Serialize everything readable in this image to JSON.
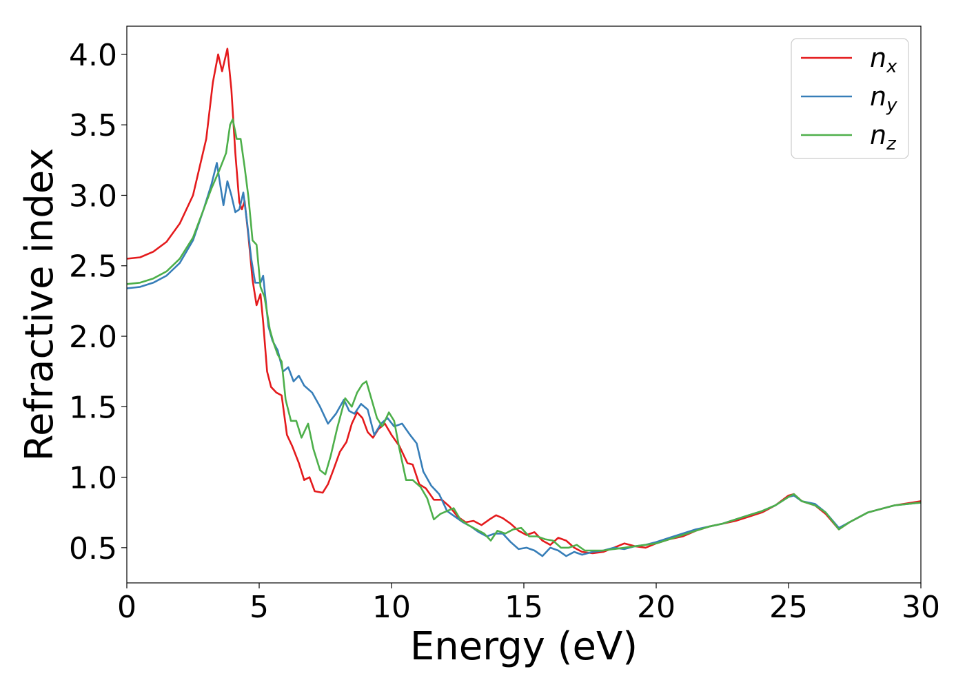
{
  "chart_data": {
    "type": "line",
    "title": "",
    "xlabel": "Energy (eV)",
    "ylabel": "Refractive index",
    "xlim": [
      0,
      30
    ],
    "ylim": [
      0.25,
      4.2
    ],
    "xticks": [
      0,
      5,
      10,
      15,
      20,
      25,
      30
    ],
    "yticks": [
      0.5,
      1.0,
      1.5,
      2.0,
      2.5,
      3.0,
      3.5,
      4.0
    ],
    "xtick_labels": [
      "0",
      "5",
      "10",
      "15",
      "20",
      "25",
      "30"
    ],
    "ytick_labels": [
      "0.5",
      "1.0",
      "1.5",
      "2.0",
      "2.5",
      "3.0",
      "3.5",
      "4.0"
    ],
    "grid": false,
    "legend_position": "top-right",
    "series": [
      {
        "name": "n",
        "subscript": "x",
        "color": "#e41a1c",
        "points": [
          [
            0,
            2.55
          ],
          [
            0.5,
            2.56
          ],
          [
            1,
            2.6
          ],
          [
            1.5,
            2.67
          ],
          [
            2,
            2.8
          ],
          [
            2.5,
            3.0
          ],
          [
            3,
            3.4
          ],
          [
            3.25,
            3.8
          ],
          [
            3.45,
            4.0
          ],
          [
            3.6,
            3.88
          ],
          [
            3.8,
            4.04
          ],
          [
            3.95,
            3.75
          ],
          [
            4.1,
            3.3
          ],
          [
            4.25,
            2.95
          ],
          [
            4.35,
            2.9
          ],
          [
            4.45,
            2.96
          ],
          [
            4.6,
            2.7
          ],
          [
            4.75,
            2.4
          ],
          [
            4.9,
            2.22
          ],
          [
            5.05,
            2.3
          ],
          [
            5.15,
            2.1
          ],
          [
            5.3,
            1.75
          ],
          [
            5.45,
            1.64
          ],
          [
            5.65,
            1.6
          ],
          [
            5.85,
            1.58
          ],
          [
            6.05,
            1.3
          ],
          [
            6.25,
            1.22
          ],
          [
            6.5,
            1.1
          ],
          [
            6.7,
            0.98
          ],
          [
            6.9,
            1.0
          ],
          [
            7.1,
            0.9
          ],
          [
            7.4,
            0.89
          ],
          [
            7.6,
            0.95
          ],
          [
            7.8,
            1.05
          ],
          [
            8.05,
            1.18
          ],
          [
            8.3,
            1.25
          ],
          [
            8.5,
            1.38
          ],
          [
            8.7,
            1.46
          ],
          [
            8.9,
            1.42
          ],
          [
            9.1,
            1.32
          ],
          [
            9.3,
            1.28
          ],
          [
            9.5,
            1.34
          ],
          [
            9.75,
            1.38
          ],
          [
            10,
            1.3
          ],
          [
            10.3,
            1.22
          ],
          [
            10.6,
            1.1
          ],
          [
            10.8,
            1.09
          ],
          [
            11.05,
            0.95
          ],
          [
            11.3,
            0.92
          ],
          [
            11.6,
            0.84
          ],
          [
            11.9,
            0.84
          ],
          [
            12.2,
            0.79
          ],
          [
            12.5,
            0.72
          ],
          [
            12.8,
            0.68
          ],
          [
            13.1,
            0.69
          ],
          [
            13.4,
            0.66
          ],
          [
            13.7,
            0.7
          ],
          [
            13.95,
            0.73
          ],
          [
            14.2,
            0.71
          ],
          [
            14.5,
            0.67
          ],
          [
            14.8,
            0.62
          ],
          [
            15.1,
            0.59
          ],
          [
            15.4,
            0.61
          ],
          [
            15.7,
            0.55
          ],
          [
            16,
            0.52
          ],
          [
            16.3,
            0.57
          ],
          [
            16.6,
            0.55
          ],
          [
            16.9,
            0.5
          ],
          [
            17.2,
            0.47
          ],
          [
            17.6,
            0.46
          ],
          [
            18,
            0.47
          ],
          [
            18.4,
            0.5
          ],
          [
            18.8,
            0.53
          ],
          [
            19.2,
            0.51
          ],
          [
            19.6,
            0.5
          ],
          [
            20,
            0.53
          ],
          [
            20.5,
            0.56
          ],
          [
            21,
            0.58
          ],
          [
            21.5,
            0.62
          ],
          [
            22,
            0.65
          ],
          [
            22.5,
            0.67
          ],
          [
            23,
            0.69
          ],
          [
            23.5,
            0.72
          ],
          [
            24,
            0.75
          ],
          [
            24.5,
            0.8
          ],
          [
            25,
            0.87
          ],
          [
            25.2,
            0.88
          ],
          [
            25.5,
            0.83
          ],
          [
            26,
            0.8
          ],
          [
            26.4,
            0.74
          ],
          [
            26.9,
            0.63
          ],
          [
            27.3,
            0.68
          ],
          [
            28,
            0.75
          ],
          [
            29,
            0.8
          ],
          [
            30,
            0.83
          ]
        ]
      },
      {
        "name": "n",
        "subscript": "y",
        "color": "#377eb8",
        "points": [
          [
            0,
            2.34
          ],
          [
            0.5,
            2.35
          ],
          [
            1,
            2.38
          ],
          [
            1.5,
            2.43
          ],
          [
            2,
            2.52
          ],
          [
            2.5,
            2.68
          ],
          [
            2.9,
            2.9
          ],
          [
            3.2,
            3.08
          ],
          [
            3.4,
            3.23
          ],
          [
            3.55,
            3.05
          ],
          [
            3.65,
            2.93
          ],
          [
            3.8,
            3.1
          ],
          [
            3.95,
            3.0
          ],
          [
            4.1,
            2.88
          ],
          [
            4.25,
            2.9
          ],
          [
            4.4,
            3.02
          ],
          [
            4.55,
            2.8
          ],
          [
            4.7,
            2.55
          ],
          [
            4.85,
            2.38
          ],
          [
            5.05,
            2.38
          ],
          [
            5.15,
            2.43
          ],
          [
            5.35,
            2.07
          ],
          [
            5.5,
            1.97
          ],
          [
            5.7,
            1.9
          ],
          [
            5.9,
            1.75
          ],
          [
            6.1,
            1.78
          ],
          [
            6.3,
            1.68
          ],
          [
            6.5,
            1.72
          ],
          [
            6.7,
            1.65
          ],
          [
            7,
            1.6
          ],
          [
            7.3,
            1.5
          ],
          [
            7.6,
            1.38
          ],
          [
            7.9,
            1.45
          ],
          [
            8.2,
            1.55
          ],
          [
            8.4,
            1.47
          ],
          [
            8.6,
            1.45
          ],
          [
            8.85,
            1.52
          ],
          [
            9.1,
            1.48
          ],
          [
            9.35,
            1.3
          ],
          [
            9.6,
            1.38
          ],
          [
            9.85,
            1.42
          ],
          [
            10.1,
            1.36
          ],
          [
            10.4,
            1.38
          ],
          [
            10.7,
            1.3
          ],
          [
            10.95,
            1.24
          ],
          [
            11.2,
            1.04
          ],
          [
            11.5,
            0.94
          ],
          [
            11.8,
            0.88
          ],
          [
            12.1,
            0.76
          ],
          [
            12.4,
            0.72
          ],
          [
            12.7,
            0.68
          ],
          [
            13,
            0.65
          ],
          [
            13.3,
            0.61
          ],
          [
            13.6,
            0.58
          ],
          [
            13.9,
            0.6
          ],
          [
            14.2,
            0.6
          ],
          [
            14.5,
            0.54
          ],
          [
            14.8,
            0.49
          ],
          [
            15.1,
            0.5
          ],
          [
            15.4,
            0.48
          ],
          [
            15.7,
            0.44
          ],
          [
            16,
            0.5
          ],
          [
            16.3,
            0.48
          ],
          [
            16.6,
            0.44
          ],
          [
            16.9,
            0.47
          ],
          [
            17.2,
            0.45
          ],
          [
            17.6,
            0.47
          ],
          [
            18,
            0.48
          ],
          [
            18.4,
            0.5
          ],
          [
            18.8,
            0.49
          ],
          [
            19.2,
            0.51
          ],
          [
            19.6,
            0.52
          ],
          [
            20,
            0.54
          ],
          [
            20.5,
            0.57
          ],
          [
            21,
            0.6
          ],
          [
            21.5,
            0.63
          ],
          [
            22,
            0.65
          ],
          [
            22.5,
            0.67
          ],
          [
            23,
            0.7
          ],
          [
            23.5,
            0.73
          ],
          [
            24,
            0.76
          ],
          [
            24.5,
            0.8
          ],
          [
            25,
            0.86
          ],
          [
            25.2,
            0.87
          ],
          [
            25.5,
            0.83
          ],
          [
            26,
            0.81
          ],
          [
            26.4,
            0.75
          ],
          [
            26.9,
            0.64
          ],
          [
            27.3,
            0.68
          ],
          [
            28,
            0.75
          ],
          [
            29,
            0.8
          ],
          [
            30,
            0.82
          ]
        ]
      },
      {
        "name": "n",
        "subscript": "z",
        "color": "#4daf4a",
        "points": [
          [
            0,
            2.37
          ],
          [
            0.5,
            2.38
          ],
          [
            1,
            2.41
          ],
          [
            1.5,
            2.46
          ],
          [
            2,
            2.55
          ],
          [
            2.5,
            2.7
          ],
          [
            2.9,
            2.9
          ],
          [
            3.2,
            3.05
          ],
          [
            3.5,
            3.18
          ],
          [
            3.75,
            3.3
          ],
          [
            3.9,
            3.5
          ],
          [
            4.0,
            3.54
          ],
          [
            4.15,
            3.4
          ],
          [
            4.3,
            3.4
          ],
          [
            4.45,
            3.2
          ],
          [
            4.6,
            2.98
          ],
          [
            4.75,
            2.68
          ],
          [
            4.9,
            2.65
          ],
          [
            5.05,
            2.35
          ],
          [
            5.2,
            2.28
          ],
          [
            5.4,
            2.05
          ],
          [
            5.55,
            1.95
          ],
          [
            5.7,
            1.87
          ],
          [
            5.85,
            1.82
          ],
          [
            6.0,
            1.55
          ],
          [
            6.2,
            1.4
          ],
          [
            6.4,
            1.4
          ],
          [
            6.6,
            1.28
          ],
          [
            6.85,
            1.38
          ],
          [
            7.05,
            1.2
          ],
          [
            7.3,
            1.05
          ],
          [
            7.5,
            1.02
          ],
          [
            7.7,
            1.15
          ],
          [
            7.95,
            1.35
          ],
          [
            8.25,
            1.56
          ],
          [
            8.5,
            1.5
          ],
          [
            8.7,
            1.6
          ],
          [
            8.9,
            1.66
          ],
          [
            9.05,
            1.68
          ],
          [
            9.25,
            1.55
          ],
          [
            9.45,
            1.42
          ],
          [
            9.65,
            1.36
          ],
          [
            9.9,
            1.46
          ],
          [
            10.1,
            1.4
          ],
          [
            10.3,
            1.2
          ],
          [
            10.55,
            0.98
          ],
          [
            10.8,
            0.98
          ],
          [
            11.1,
            0.93
          ],
          [
            11.35,
            0.85
          ],
          [
            11.6,
            0.7
          ],
          [
            11.85,
            0.74
          ],
          [
            12.1,
            0.76
          ],
          [
            12.35,
            0.78
          ],
          [
            12.6,
            0.7
          ],
          [
            12.9,
            0.66
          ],
          [
            13.2,
            0.63
          ],
          [
            13.5,
            0.6
          ],
          [
            13.75,
            0.55
          ],
          [
            14.0,
            0.62
          ],
          [
            14.3,
            0.6
          ],
          [
            14.6,
            0.63
          ],
          [
            14.9,
            0.64
          ],
          [
            15.2,
            0.58
          ],
          [
            15.5,
            0.58
          ],
          [
            15.8,
            0.56
          ],
          [
            16.1,
            0.55
          ],
          [
            16.4,
            0.5
          ],
          [
            16.7,
            0.5
          ],
          [
            17.0,
            0.52
          ],
          [
            17.3,
            0.48
          ],
          [
            17.6,
            0.48
          ],
          [
            18,
            0.48
          ],
          [
            18.4,
            0.49
          ],
          [
            18.8,
            0.5
          ],
          [
            19.2,
            0.51
          ],
          [
            19.6,
            0.52
          ],
          [
            20,
            0.53
          ],
          [
            20.5,
            0.56
          ],
          [
            21,
            0.59
          ],
          [
            21.5,
            0.62
          ],
          [
            22,
            0.65
          ],
          [
            22.5,
            0.67
          ],
          [
            23,
            0.7
          ],
          [
            23.5,
            0.73
          ],
          [
            24,
            0.76
          ],
          [
            24.5,
            0.8
          ],
          [
            25,
            0.86
          ],
          [
            25.2,
            0.88
          ],
          [
            25.5,
            0.83
          ],
          [
            26,
            0.8
          ],
          [
            26.4,
            0.75
          ],
          [
            26.9,
            0.63
          ],
          [
            27.3,
            0.68
          ],
          [
            28,
            0.75
          ],
          [
            29,
            0.8
          ],
          [
            30,
            0.82
          ]
        ]
      }
    ]
  }
}
